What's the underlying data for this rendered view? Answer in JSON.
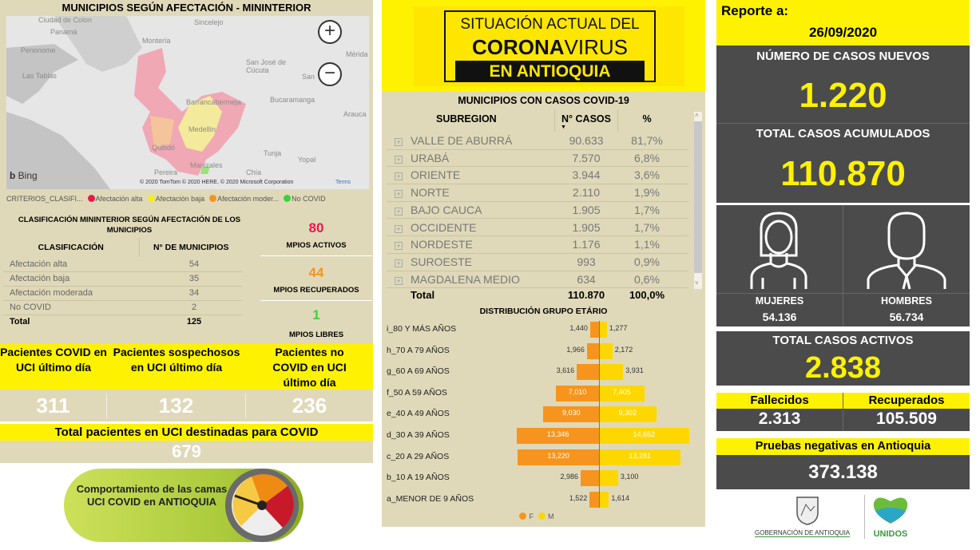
{
  "map_panel": {
    "title": "MUNICIPIOS SEGÚN AFECTACIÓN - MININTERIOR",
    "map_labels": [
      "Ciudad de Colon",
      "Panamá",
      "Penonome",
      "Las Tablas",
      "Montería",
      "Sincelejo",
      "San José de Cúcuta",
      "San",
      "Mérida",
      "Bucaramanga",
      "Barrancabermeja",
      "Arauca",
      "Medellín",
      "Quibdó",
      "Tunja",
      "Yopal",
      "Manizales",
      "Pereira",
      "Chía"
    ],
    "bing": "Bing",
    "copyright": "© 2020 TomTom © 2020 HERE, © 2020 Microsoft Corporation",
    "terms": "Terms",
    "zoom_in": "+",
    "zoom_out": "−",
    "legend_title": "CRITERIOS_CLASIFI...",
    "legend": [
      {
        "label": "Afectación alta",
        "color": "#e8194a"
      },
      {
        "label": "Afectación baja",
        "color": "#f5ee1f"
      },
      {
        "label": "Afectación moder...",
        "color": "#f7941d"
      },
      {
        "label": "No COVID",
        "color": "#39d339"
      }
    ]
  },
  "classification": {
    "title": "CLASIFICACIÓN MININTERIOR SEGÚN AFECTACIÓN DE LOS MUNICIPIOS",
    "col1": "CLASIFICACIÓN",
    "col2": "N° DE MUNICIPIOS",
    "rows": [
      {
        "name": "Afectación alta",
        "value": "54"
      },
      {
        "name": "Afectación baja",
        "value": "35"
      },
      {
        "name": "Afectación moderada",
        "value": "34"
      },
      {
        "name": "No COVID",
        "value": "2"
      }
    ],
    "total_label": "Total",
    "total_value": "125"
  },
  "mpios": {
    "activos": {
      "value": "80",
      "label": "MPIOS ACTIVOS",
      "color": "#e8194a"
    },
    "recuperados": {
      "value": "44",
      "label": "MPIOS RECUPERADOS",
      "color": "#f7941d"
    },
    "libres": {
      "value": "1",
      "label": "MPIOS LIBRES",
      "color": "#39d339"
    }
  },
  "uci": {
    "cards": [
      {
        "label": "Pacientes COVID en UCI último día",
        "value": "311"
      },
      {
        "label": "Pacientes sospechosos en UCI último día",
        "value": "132"
      },
      {
        "label": "Pacientes no COVID en UCI último día",
        "value": "236"
      }
    ],
    "total_label": "Total pacientes en UCI destinadas para COVID",
    "total_value": "679",
    "banner": "Comportamiento de las camas UCI COVID en ANTIOQUIA"
  },
  "header_logo": {
    "line1": "SITUACIÓN ACTUAL DEL",
    "line2a": "CORONA",
    "line2b": "VIRUS",
    "line3": "EN ANTIOQUIA"
  },
  "subregions": {
    "title": "MUNICIPIOS CON CASOS COVID-19",
    "col1": "SUBREGION",
    "col2": "N° CASOS",
    "col3": "%",
    "rows": [
      {
        "name": "VALLE DE ABURRÁ",
        "cases": "90.633",
        "pct": "81,7%"
      },
      {
        "name": "URABÁ",
        "cases": "7.570",
        "pct": "6,8%"
      },
      {
        "name": "ORIENTE",
        "cases": "3.944",
        "pct": "3,6%"
      },
      {
        "name": "NORTE",
        "cases": "2.110",
        "pct": "1,9%"
      },
      {
        "name": "BAJO CAUCA",
        "cases": "1.905",
        "pct": "1,7%"
      },
      {
        "name": "OCCIDENTE",
        "cases": "1.905",
        "pct": "1,7%"
      },
      {
        "name": "NORDESTE",
        "cases": "1.176",
        "pct": "1,1%"
      },
      {
        "name": "SUROESTE",
        "cases": "993",
        "pct": "0,9%"
      },
      {
        "name": "MAGDALENA MEDIO",
        "cases": "634",
        "pct": "0,6%"
      }
    ],
    "total_label": "Total",
    "total_cases": "110.870",
    "total_pct": "100,0%"
  },
  "chart_data": {
    "type": "bar",
    "title": "DISTRIBUCIÓN GRUPO ETÁRIO",
    "categories": [
      "i_80 Y MÁS AÑOS",
      "h_70 A 79 AÑOS",
      "g_60 A 69 AÑOS",
      "f_50 A 59 AÑOS",
      "e_40 A 49 AÑOS",
      "d_30 A 39 AÑOS",
      "c_20 A 29 AÑOS",
      "b_10 A 19 AÑOS",
      "a_MENOR DE 9 AÑOS"
    ],
    "series": [
      {
        "name": "F",
        "color": "#f7941d",
        "values": [
          1440,
          1966,
          3616,
          7010,
          9030,
          13346,
          13220,
          2986,
          1522
        ],
        "labels": [
          "1,440",
          "1,966",
          "3,616",
          "7,010",
          "9,030",
          "13,346",
          "13,220",
          "2,986",
          "1,522"
        ]
      },
      {
        "name": "M",
        "color": "#ffd700",
        "values": [
          1277,
          2172,
          3931,
          7405,
          9302,
          14652,
          13281,
          3100,
          1614
        ],
        "labels": [
          "1,277",
          "2,172",
          "3,931",
          "7,405",
          "9,302",
          "14,652",
          "13,281",
          "3,100",
          "1,614"
        ]
      }
    ],
    "orientation": "horizontal-pyramid",
    "legend": "bottom"
  },
  "report": {
    "label": "Reporte a:",
    "date": "26/09/2020",
    "nuevos_label": "NÚMERO DE CASOS NUEVOS",
    "nuevos": "1.220",
    "acumulados_label": "TOTAL CASOS ACUMULADOS",
    "acumulados": "110.870",
    "mujeres_label": "MUJERES",
    "mujeres": "54.136",
    "hombres_label": "HOMBRES",
    "hombres": "56.734",
    "activos_label": "TOTAL CASOS ACTIVOS",
    "activos": "2.838",
    "fallecidos_label": "Fallecidos",
    "fallecidos": "2.313",
    "recuperados_label": "Recuperados",
    "recuperados": "105.509",
    "pruebas_label": "Pruebas negativas en Antioquia",
    "pruebas": "373.138",
    "logo1": "GOBERNACIÓN DE ANTIOQUIA",
    "logo2": "UNIDOS"
  }
}
